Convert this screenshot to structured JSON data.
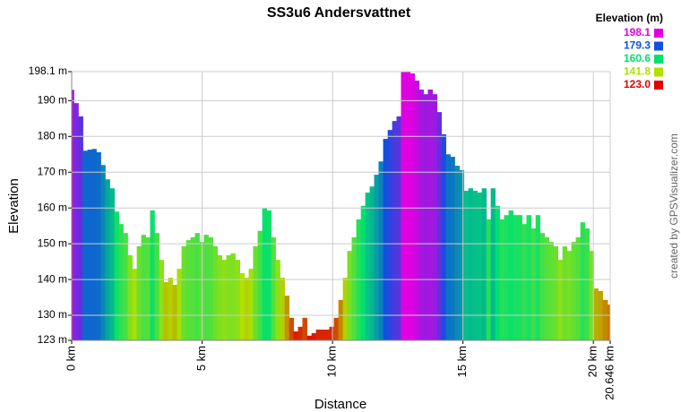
{
  "chart_data": {
    "type": "elevation-profile",
    "title": "SS3u6 Andersvattnet",
    "x_label": "Distance",
    "y_label": "Elevation",
    "credit": "created by GPSVisualizer.com",
    "legend_title": "Elevation (m)",
    "color_scale": [
      {
        "value": 198.1,
        "color": "#e000e0"
      },
      {
        "value": 179.3,
        "color": "#1050e0"
      },
      {
        "value": 160.6,
        "color": "#00e070"
      },
      {
        "value": 141.8,
        "color": "#b0e000"
      },
      {
        "value": 123,
        "label": "123.0",
        "color": "#e00000"
      }
    ],
    "grid": true,
    "xlim": [
      0,
      20.646
    ],
    "ylim": [
      123,
      198.1
    ],
    "xticks": [
      {
        "value": 0,
        "label": "0 km"
      },
      {
        "value": 5,
        "label": "5 km"
      },
      {
        "value": 10,
        "label": "10 km"
      },
      {
        "value": 15,
        "label": "15 km"
      },
      {
        "value": 20,
        "label": "20 km"
      },
      {
        "value": 20.646,
        "label": "20.646 km"
      }
    ],
    "yticks": [
      {
        "value": 123,
        "label": "123 m"
      },
      {
        "value": 130,
        "label": "130 m"
      },
      {
        "value": 140,
        "label": "140 m"
      },
      {
        "value": 150,
        "label": "150 m"
      },
      {
        "value": 160,
        "label": "160 m"
      },
      {
        "value": 170,
        "label": "170 m"
      },
      {
        "value": 180,
        "label": "180 m"
      },
      {
        "value": 190,
        "label": "190 m"
      },
      {
        "value": 198.1,
        "label": "198.1 m"
      }
    ],
    "x": [
      0,
      0.17,
      0.34,
      0.52,
      0.69,
      0.86,
      1.03,
      1.2,
      1.37,
      1.55,
      1.72,
      1.89,
      2.06,
      2.23,
      2.41,
      2.58,
      2.75,
      2.92,
      3.09,
      3.26,
      3.44,
      3.61,
      3.78,
      3.95,
      4.12,
      4.3,
      4.47,
      4.64,
      4.81,
      4.98,
      5.15,
      5.33,
      5.5,
      5.67,
      5.84,
      6.01,
      6.18,
      6.36,
      6.53,
      6.7,
      6.87,
      7.04,
      7.22,
      7.39,
      7.56,
      7.73,
      7.9,
      8.07,
      8.25,
      8.42,
      8.59,
      8.76,
      8.93,
      9.11,
      9.28,
      9.45,
      9.62,
      9.79,
      9.96,
      10.14,
      10.31,
      10.48,
      10.65,
      10.82,
      11,
      11.17,
      11.34,
      11.51,
      11.68,
      11.85,
      12.03,
      12.2,
      12.37,
      12.54,
      12.71,
      12.89,
      13.06,
      13.23,
      13.4,
      13.57,
      13.74,
      13.92,
      14.09,
      14.26,
      14.43,
      14.6,
      14.77,
      14.95,
      15.12,
      15.29,
      15.46,
      15.63,
      15.81,
      15.98,
      16.15,
      16.32,
      16.49,
      16.66,
      16.84,
      17.01,
      17.18,
      17.35,
      17.52,
      17.7,
      17.87,
      18.04,
      18.21,
      18.38,
      18.55,
      18.73,
      18.9,
      19.07,
      19.24,
      19.41,
      19.59,
      19.76,
      19.93,
      20.1,
      20.27,
      20.44,
      20.646
    ],
    "values": [
      193,
      189.3,
      185.6,
      176,
      176.3,
      176.5,
      175.6,
      172,
      168,
      165.5,
      159,
      155.5,
      153,
      146.8,
      143,
      149.3,
      152.5,
      151.8,
      159.3,
      153,
      145.5,
      139.3,
      140.5,
      138.5,
      143,
      149.3,
      151,
      151.8,
      153,
      150.5,
      152.5,
      151.8,
      149.3,
      146.8,
      145.5,
      146.8,
      147.3,
      145.5,
      141.8,
      140.5,
      143,
      149.3,
      153.6,
      160,
      159.3,
      151.8,
      145.5,
      140.5,
      135.5,
      129.3,
      125.5,
      126.8,
      129.3,
      124.3,
      125,
      126,
      126,
      126,
      126.8,
      129.3,
      134.3,
      140.5,
      148,
      151.8,
      156.8,
      160.6,
      164.3,
      166,
      169.3,
      173,
      179.3,
      181.8,
      184.3,
      185.6,
      198.1,
      198.1,
      197.6,
      195.6,
      193.1,
      191.8,
      193.1,
      191.8,
      186.8,
      180.6,
      175,
      174.3,
      171.8,
      170.6,
      164.8,
      165.5,
      164.8,
      164.3,
      165.5,
      156.8,
      165.5,
      160.6,
      156.8,
      158,
      159.3,
      158,
      158,
      155.5,
      158,
      154.3,
      158,
      153,
      151.8,
      150.5,
      149.3,
      145.5,
      149.3,
      148,
      150.5,
      151.8,
      156,
      154.3,
      148,
      137.5,
      136.8,
      134.3,
      133
    ]
  }
}
